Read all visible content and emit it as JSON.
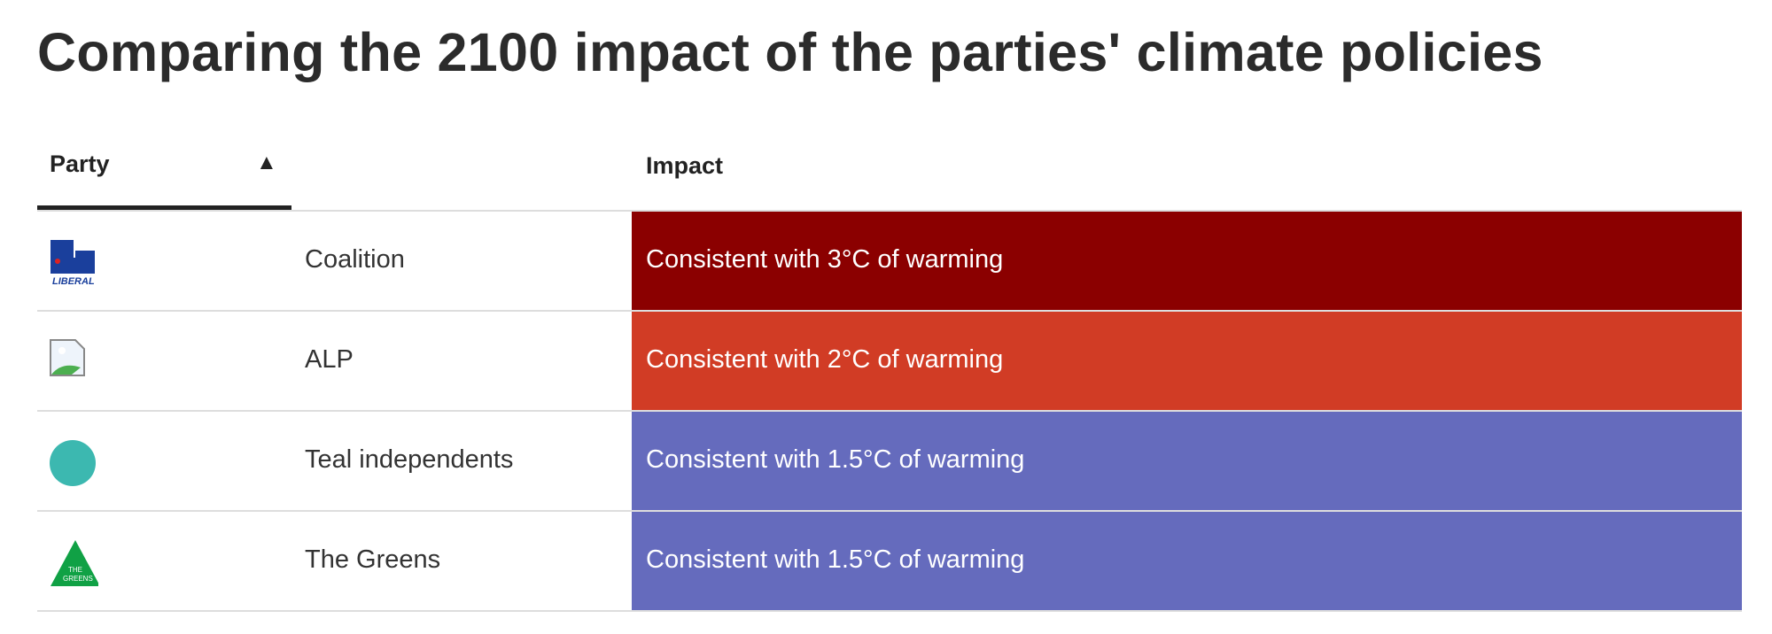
{
  "title": "Comparing the 2100 impact of the parties' climate policies",
  "table": {
    "headers": {
      "party": "Party",
      "sort_indicator": "▲",
      "impact": "Impact"
    },
    "rows": [
      {
        "party": "Coalition",
        "logo": "liberal-logo",
        "logo_text": "LIBERAL",
        "impact": "Consistent with 3°C of warming",
        "color": "#8b0000"
      },
      {
        "party": "ALP",
        "logo": "broken-image-icon",
        "impact": "Consistent with 2°C of warming",
        "color": "#d13c25"
      },
      {
        "party": "Teal independents",
        "logo": "teal-circle",
        "impact": "Consistent with 1.5°C of warming",
        "color": "#656bbd"
      },
      {
        "party": "The Greens",
        "logo": "greens-logo",
        "logo_text": "THE GREENS",
        "impact": "Consistent with 1.5°C of warming",
        "color": "#656bbd"
      }
    ]
  }
}
